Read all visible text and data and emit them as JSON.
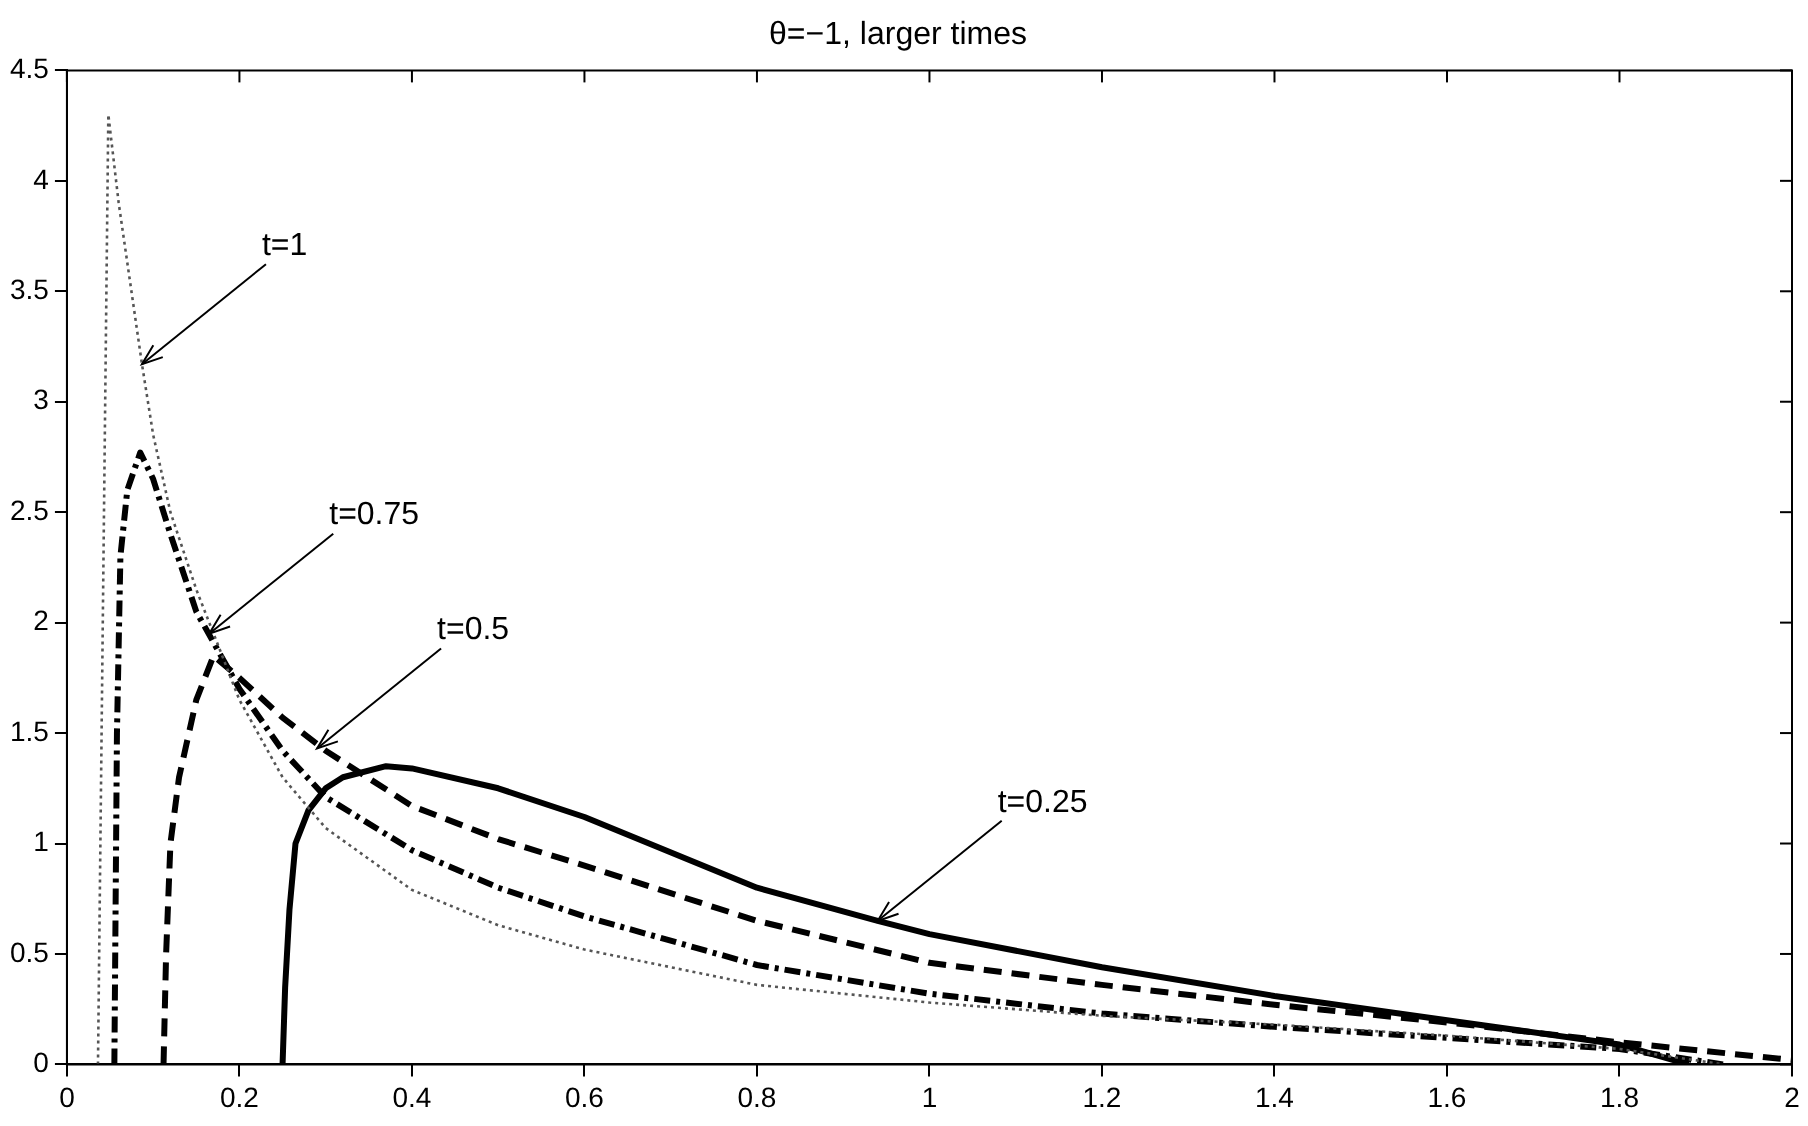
{
  "chart_data": {
    "type": "line",
    "title": "θ=−1, larger times",
    "marker": "none",
    "grid": false,
    "legend": false,
    "xlim": [
      0,
      2
    ],
    "xticks": [
      0,
      0.2,
      0.4,
      0.6,
      0.8,
      1,
      1.2,
      1.4,
      1.6,
      1.8,
      2
    ],
    "ylim": [
      0,
      4.5
    ],
    "yticks": [
      0,
      0.5,
      1,
      1.5,
      2,
      2.5,
      3,
      3.5,
      4,
      4.5
    ],
    "series": [
      {
        "color": "#555555",
        "line_style": "dotted",
        "x": [
          0.036,
          0.048,
          0.06,
          0.087,
          0.1,
          0.12,
          0.15,
          0.2,
          0.25,
          0.3,
          0.4,
          0.5,
          0.6,
          0.8,
          1,
          1.2,
          1.4,
          1.6,
          1.8,
          1.92
        ],
        "values": [
          0,
          4.3,
          3.9,
          3.17,
          2.85,
          2.5,
          2.15,
          1.65,
          1.3,
          1.07,
          0.79,
          0.63,
          0.52,
          0.36,
          0.28,
          0.22,
          0.18,
          0.13,
          0.07,
          0
        ]
      },
      {
        "color": "#000000",
        "line_style": "dashdot",
        "x": [
          0.055,
          0.058,
          0.062,
          0.07,
          0.085,
          0.1,
          0.12,
          0.15,
          0.2,
          0.25,
          0.3,
          0.4,
          0.5,
          0.6,
          0.8,
          1,
          1.2,
          1.4,
          1.6,
          1.8,
          1.92
        ],
        "values": [
          0,
          1.5,
          2.3,
          2.6,
          2.77,
          2.65,
          2.4,
          2.05,
          1.7,
          1.42,
          1.21,
          0.97,
          0.8,
          0.67,
          0.45,
          0.32,
          0.23,
          0.17,
          0.12,
          0.07,
          0
        ]
      },
      {
        "color": "#000000",
        "line_style": "dashed",
        "x": [
          0.112,
          0.115,
          0.12,
          0.13,
          0.15,
          0.17,
          0.2,
          0.25,
          0.3,
          0.4,
          0.5,
          0.6,
          0.8,
          1,
          1.2,
          1.4,
          1.6,
          1.8,
          2
        ],
        "values": [
          0,
          0.5,
          1,
          1.3,
          1.65,
          1.85,
          1.75,
          1.57,
          1.42,
          1.17,
          1.02,
          0.9,
          0.65,
          0.46,
          0.36,
          0.27,
          0.19,
          0.1,
          0.02
        ]
      },
      {
        "color": "#000000",
        "line_style": "solid",
        "x": [
          0.25,
          0.253,
          0.258,
          0.265,
          0.28,
          0.3,
          0.32,
          0.37,
          0.4,
          0.5,
          0.6,
          0.8,
          0.94,
          1,
          1.2,
          1.4,
          1.6,
          1.8,
          1.88
        ],
        "values": [
          0,
          0.35,
          0.7,
          1,
          1.15,
          1.25,
          1.3,
          1.35,
          1.34,
          1.25,
          1.12,
          0.8,
          0.65,
          0.59,
          0.44,
          0.31,
          0.2,
          0.09,
          0
        ]
      }
    ],
    "annotations": [
      {
        "text": "t=1",
        "x": 0.087,
        "y": 3.17
      },
      {
        "text": "t=0.75",
        "x": 0.165,
        "y": 1.95
      },
      {
        "text": "t=0.5",
        "x": 0.29,
        "y": 1.43
      },
      {
        "text": "t=0.25",
        "x": 0.94,
        "y": 0.65
      }
    ]
  }
}
